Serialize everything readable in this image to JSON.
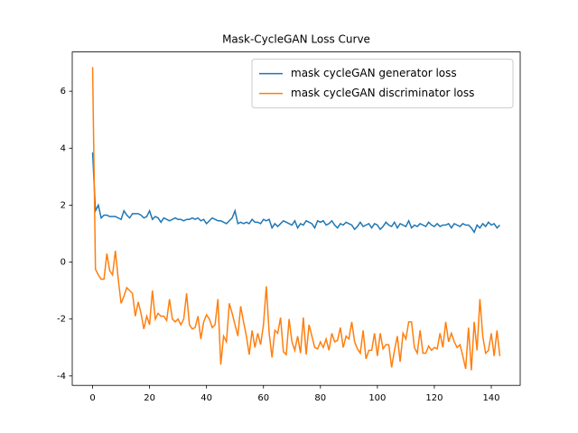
{
  "chart_data": {
    "type": "line",
    "title": "Mask-CycleGAN Loss Curve",
    "x": [
      0,
      1,
      2,
      3,
      4,
      5,
      6,
      7,
      8,
      9,
      10,
      11,
      12,
      13,
      14,
      15,
      16,
      17,
      18,
      19,
      20,
      21,
      22,
      23,
      24,
      25,
      26,
      27,
      28,
      29,
      30,
      31,
      32,
      33,
      34,
      35,
      36,
      37,
      38,
      39,
      40,
      41,
      42,
      43,
      44,
      45,
      46,
      47,
      48,
      49,
      50,
      51,
      52,
      53,
      54,
      55,
      56,
      57,
      58,
      59,
      60,
      61,
      62,
      63,
      64,
      65,
      66,
      67,
      68,
      69,
      70,
      71,
      72,
      73,
      74,
      75,
      76,
      77,
      78,
      79,
      80,
      81,
      82,
      83,
      84,
      85,
      86,
      87,
      88,
      89,
      90,
      91,
      92,
      93,
      94,
      95,
      96,
      97,
      98,
      99,
      100,
      101,
      102,
      103,
      104,
      105,
      106,
      107,
      108,
      109,
      110,
      111,
      112,
      113,
      114,
      115,
      116,
      117,
      118,
      119,
      120,
      121,
      122,
      123,
      124,
      125,
      126,
      127,
      128,
      129,
      130,
      131,
      132,
      133,
      134,
      135,
      136,
      137,
      138,
      139,
      140,
      141,
      142,
      143
    ],
    "series": [
      {
        "name": "mask cycleGAN generator loss",
        "color": "#1f77b4",
        "values": [
          3.85,
          1.8,
          2.0,
          1.55,
          1.65,
          1.65,
          1.6,
          1.6,
          1.6,
          1.55,
          1.5,
          1.8,
          1.65,
          1.55,
          1.7,
          1.7,
          1.7,
          1.65,
          1.55,
          1.6,
          1.8,
          1.5,
          1.6,
          1.55,
          1.4,
          1.55,
          1.5,
          1.45,
          1.5,
          1.55,
          1.5,
          1.5,
          1.45,
          1.5,
          1.5,
          1.55,
          1.5,
          1.55,
          1.45,
          1.5,
          1.35,
          1.45,
          1.55,
          1.5,
          1.45,
          1.45,
          1.4,
          1.35,
          1.45,
          1.55,
          1.8,
          1.35,
          1.4,
          1.35,
          1.4,
          1.35,
          1.5,
          1.4,
          1.4,
          1.35,
          1.5,
          1.45,
          1.5,
          1.2,
          1.35,
          1.25,
          1.35,
          1.45,
          1.4,
          1.35,
          1.3,
          1.45,
          1.2,
          1.35,
          1.3,
          1.45,
          1.4,
          1.35,
          1.2,
          1.45,
          1.4,
          1.45,
          1.3,
          1.35,
          1.45,
          1.3,
          1.2,
          1.35,
          1.3,
          1.4,
          1.35,
          1.3,
          1.15,
          1.25,
          1.4,
          1.25,
          1.3,
          1.35,
          1.2,
          1.35,
          1.3,
          1.15,
          1.25,
          1.4,
          1.3,
          1.25,
          1.4,
          1.2,
          1.35,
          1.3,
          1.25,
          1.45,
          1.2,
          1.3,
          1.25,
          1.35,
          1.3,
          1.25,
          1.4,
          1.3,
          1.25,
          1.35,
          1.25,
          1.3,
          1.3,
          1.35,
          1.2,
          1.35,
          1.3,
          1.25,
          1.35,
          1.3,
          1.3,
          1.2,
          1.05,
          1.3,
          1.2,
          1.35,
          1.25,
          1.4,
          1.3,
          1.35,
          1.2,
          1.3
        ]
      },
      {
        "name": "mask cycleGAN discriminator loss",
        "color": "#ff7f0e",
        "values": [
          6.85,
          -0.25,
          -0.45,
          -0.6,
          -0.6,
          0.3,
          -0.3,
          -0.45,
          0.4,
          -0.6,
          -1.45,
          -1.2,
          -0.9,
          -1.0,
          -1.1,
          -1.9,
          -1.4,
          -1.8,
          -2.35,
          -1.9,
          -2.2,
          -1.0,
          -2.0,
          -1.8,
          -1.9,
          -1.9,
          -2.05,
          -1.3,
          -2.0,
          -2.1,
          -2.0,
          -2.2,
          -2.0,
          -1.1,
          -2.2,
          -2.35,
          -2.3,
          -1.9,
          -2.7,
          -2.1,
          -1.85,
          -2.0,
          -2.3,
          -2.2,
          -1.3,
          -3.6,
          -2.6,
          -2.8,
          -1.45,
          -1.8,
          -2.2,
          -2.6,
          -1.55,
          -2.1,
          -2.6,
          -3.25,
          -2.4,
          -3.0,
          -2.5,
          -2.9,
          -2.2,
          -0.85,
          -2.5,
          -3.35,
          -2.4,
          -2.5,
          -1.95,
          -3.15,
          -3.25,
          -2.0,
          -2.8,
          -3.1,
          -2.6,
          -3.2,
          -1.95,
          -3.25,
          -2.2,
          -2.6,
          -3.0,
          -3.05,
          -2.8,
          -3.0,
          -2.7,
          -3.1,
          -2.5,
          -2.8,
          -2.75,
          -2.3,
          -3.0,
          -2.6,
          -2.7,
          -2.1,
          -2.8,
          -3.05,
          -3.2,
          -2.4,
          -3.4,
          -3.1,
          -3.1,
          -2.5,
          -3.3,
          -2.5,
          -3.05,
          -2.9,
          -2.9,
          -3.7,
          -3.1,
          -2.6,
          -3.5,
          -2.5,
          -2.7,
          -2.1,
          -2.1,
          -3.0,
          -3.2,
          -2.4,
          -3.2,
          -3.2,
          -2.95,
          -3.1,
          -3.0,
          -3.05,
          -2.5,
          -3.0,
          -2.1,
          -2.8,
          -2.5,
          -2.8,
          -3.0,
          -2.9,
          -3.3,
          -3.75,
          -2.3,
          -3.8,
          -2.1,
          -3.1,
          -1.3,
          -2.6,
          -3.2,
          -3.1,
          -2.5,
          -3.3,
          -2.4,
          -3.3
        ]
      }
    ],
    "xlim": [
      -7.15,
      150.15
    ],
    "xticks": [
      0,
      20,
      40,
      60,
      80,
      100,
      120,
      140
    ],
    "ylim": [
      -4.33,
      7.38
    ],
    "yticks": [
      -4,
      -2,
      0,
      2,
      4,
      6
    ],
    "grid": false,
    "legend": "upper right"
  }
}
